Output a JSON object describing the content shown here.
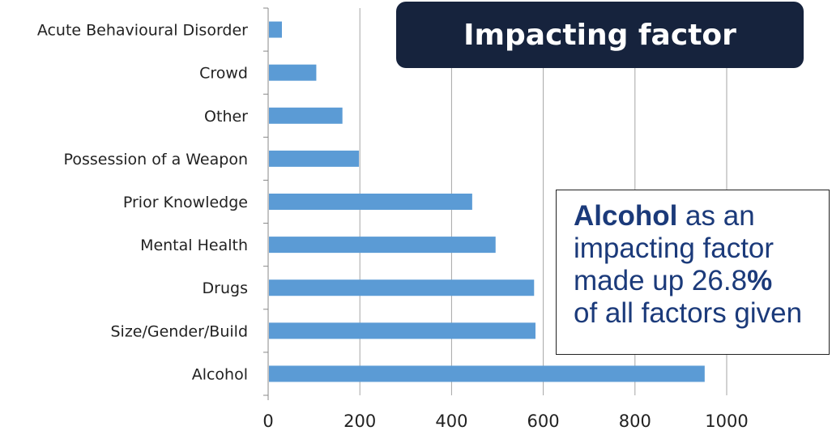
{
  "title": "Impacting factor",
  "callout": {
    "emph": "Alcohol",
    "line1_rest": " as an",
    "line2": "impacting factor",
    "line3_text": "made up 26.8",
    "line3_pct": "%",
    "line4": "of all factors given"
  },
  "colors": {
    "bar": "#5b9bd5",
    "title_bg": "#16233d",
    "callout_text": "#1b3a7a",
    "grid": "#a6a6a6"
  },
  "chart_data": {
    "type": "bar",
    "orientation": "horizontal",
    "categories": [
      "Acute Behavioural Disorder",
      "Crowd",
      "Other",
      "Possession of a Weapon",
      "Prior Knowledge",
      "Mental Health",
      "Drugs",
      "Size/Gender/Build",
      "Alcohol"
    ],
    "values": [
      30,
      105,
      162,
      198,
      445,
      496,
      580,
      583,
      952
    ],
    "xlim": [
      0,
      1000
    ],
    "xticks": [
      0,
      200,
      400,
      600,
      800,
      1000
    ],
    "grid": "vertical",
    "legend": "none"
  }
}
